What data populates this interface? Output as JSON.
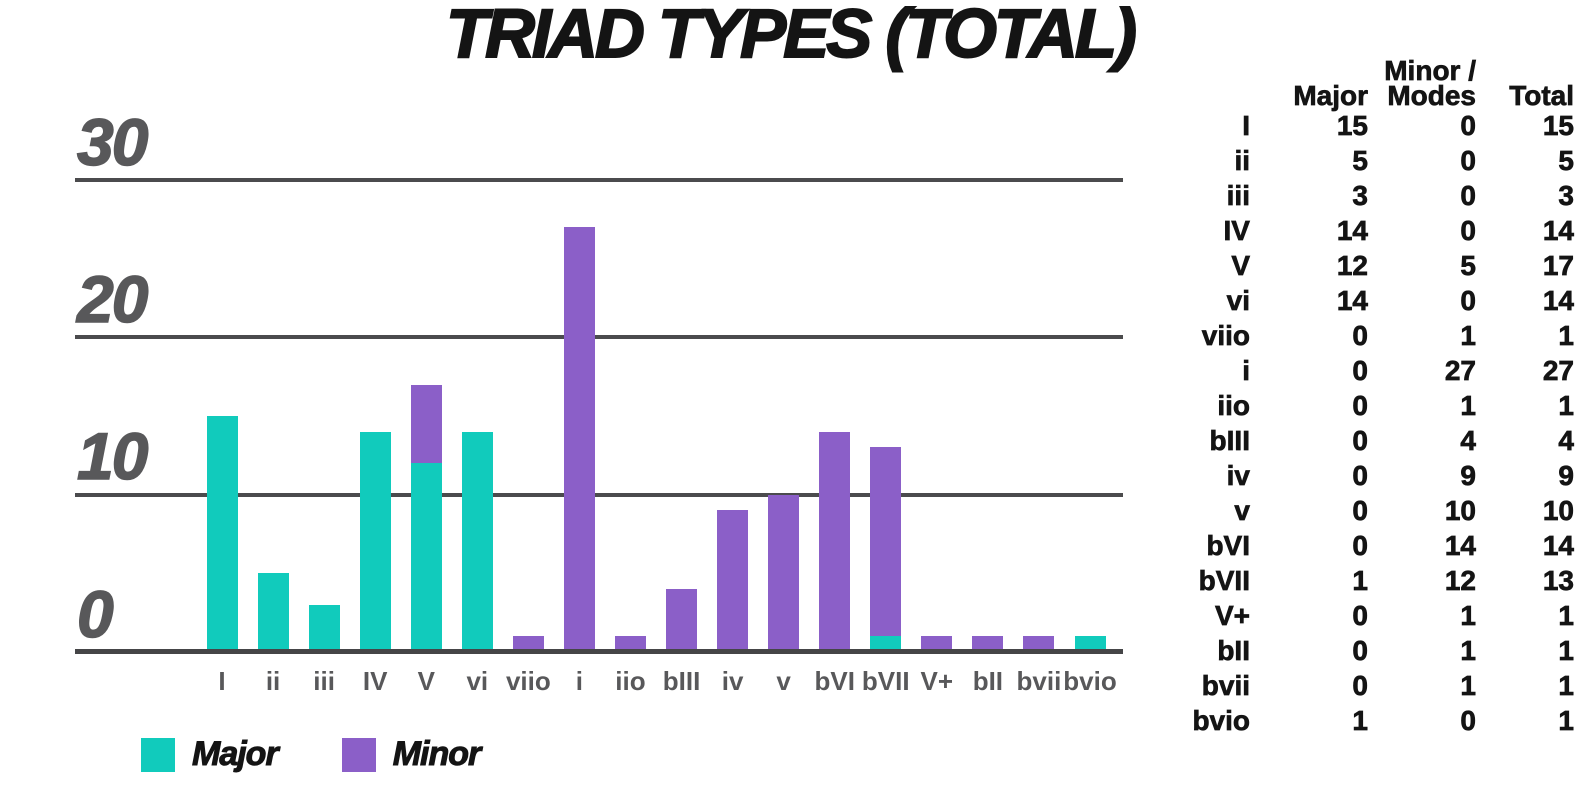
{
  "title": "TRIAD TYPES (TOTAL)",
  "colors": {
    "major": "#11CBBC",
    "minor": "#8B5FC8",
    "grid": "#4B4B4D",
    "baseline": "#454547",
    "axis_label": "#58585A",
    "text": "#141414"
  },
  "legend": {
    "items": [
      {
        "label": "Major",
        "series": "major"
      },
      {
        "label": "Minor",
        "series": "minor"
      }
    ]
  },
  "chart_data": {
    "type": "bar",
    "stacked": true,
    "title": "TRIAD TYPES (TOTAL)",
    "categories": [
      "I",
      "ii",
      "iii",
      "IV",
      "V",
      "vi",
      "viio",
      "i",
      "iio",
      "bIII",
      "iv",
      "v",
      "bVI",
      "bVII",
      "V+",
      "bII",
      "bvii",
      "bvio"
    ],
    "series": [
      {
        "name": "Major",
        "color": "#11CBBC",
        "values": [
          15,
          5,
          3,
          14,
          12,
          14,
          0,
          0,
          0,
          0,
          0,
          0,
          0,
          1,
          0,
          0,
          0,
          1
        ]
      },
      {
        "name": "Minor",
        "color": "#8B5FC8",
        "values": [
          0,
          0,
          0,
          0,
          5,
          0,
          1,
          27,
          1,
          4,
          9,
          10,
          14,
          12,
          1,
          1,
          1,
          0
        ]
      }
    ],
    "xlabel": "",
    "ylabel": "",
    "ylim": [
      0,
      30
    ],
    "yticks": [
      0,
      10,
      20,
      30
    ],
    "grid": "horizontal",
    "legend_position": "bottom-left"
  },
  "table": {
    "headers": [
      "",
      "Major",
      "Minor /\nModes",
      "Total"
    ],
    "rows": [
      [
        "I",
        "15",
        "0",
        "15"
      ],
      [
        "ii",
        "5",
        "0",
        "5"
      ],
      [
        "iii",
        "3",
        "0",
        "3"
      ],
      [
        "IV",
        "14",
        "0",
        "14"
      ],
      [
        "V",
        "12",
        "5",
        "17"
      ],
      [
        "vi",
        "14",
        "0",
        "14"
      ],
      [
        "viio",
        "0",
        "1",
        "1"
      ],
      [
        "i",
        "0",
        "27",
        "27"
      ],
      [
        "iio",
        "0",
        "1",
        "1"
      ],
      [
        "bIII",
        "0",
        "4",
        "4"
      ],
      [
        "iv",
        "0",
        "9",
        "9"
      ],
      [
        "v",
        "0",
        "10",
        "10"
      ],
      [
        "bVI",
        "0",
        "14",
        "14"
      ],
      [
        "bVII",
        "1",
        "12",
        "13"
      ],
      [
        "V+",
        "0",
        "1",
        "1"
      ],
      [
        "bII",
        "0",
        "1",
        "1"
      ],
      [
        "bvii",
        "0",
        "1",
        "1"
      ],
      [
        "bvio",
        "1",
        "0",
        "1"
      ]
    ]
  }
}
